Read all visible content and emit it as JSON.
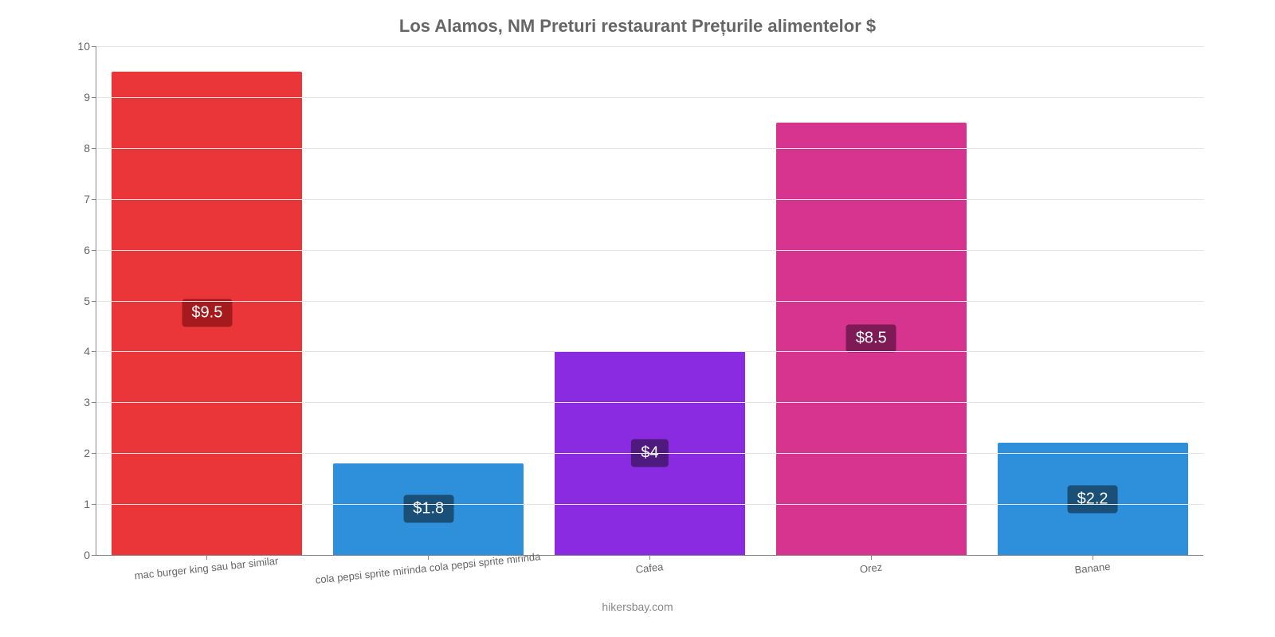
{
  "chart": {
    "type": "bar",
    "title": "Los Alamos, NM Preturi restaurant Prețurile alimentelor $",
    "title_color": "#666666",
    "title_fontsize": 22,
    "background_color": "#ffffff",
    "grid_color": "#e5e5e5",
    "axis_color": "#888888",
    "tick_label_color": "#666666",
    "tick_label_fontsize": 14,
    "x_label_fontsize": 13,
    "x_label_rotation_deg": -6,
    "value_label_fontsize": 20,
    "value_label_text_color": "#ffffff",
    "ylim": [
      0,
      10
    ],
    "ytick_step": 1,
    "yticks": [
      0,
      1,
      2,
      3,
      4,
      5,
      6,
      7,
      8,
      9,
      10
    ],
    "bar_width_ratio": 0.86,
    "categories": [
      "mac burger king sau bar similar",
      "cola pepsi sprite mirinda cola pepsi sprite mirinda",
      "Cafea",
      "Orez",
      "Banane"
    ],
    "values": [
      9.5,
      1.8,
      4,
      8.5,
      2.2
    ],
    "value_labels": [
      "$9.5",
      "$1.8",
      "$4",
      "$8.5",
      "$2.2"
    ],
    "bar_colors": [
      "#eb3639",
      "#2e8fda",
      "#8a2be2",
      "#d6348e",
      "#2e8fda"
    ],
    "value_label_bg_colors": [
      "#a51b1d",
      "#1a4f78",
      "#4f1a7e",
      "#7e1a55",
      "#1a4f78"
    ],
    "label_center_offsets": [
      50,
      50,
      50,
      50,
      50
    ],
    "footer": "hikersbay.com",
    "footer_color": "#888888",
    "footer_fontsize": 14
  }
}
